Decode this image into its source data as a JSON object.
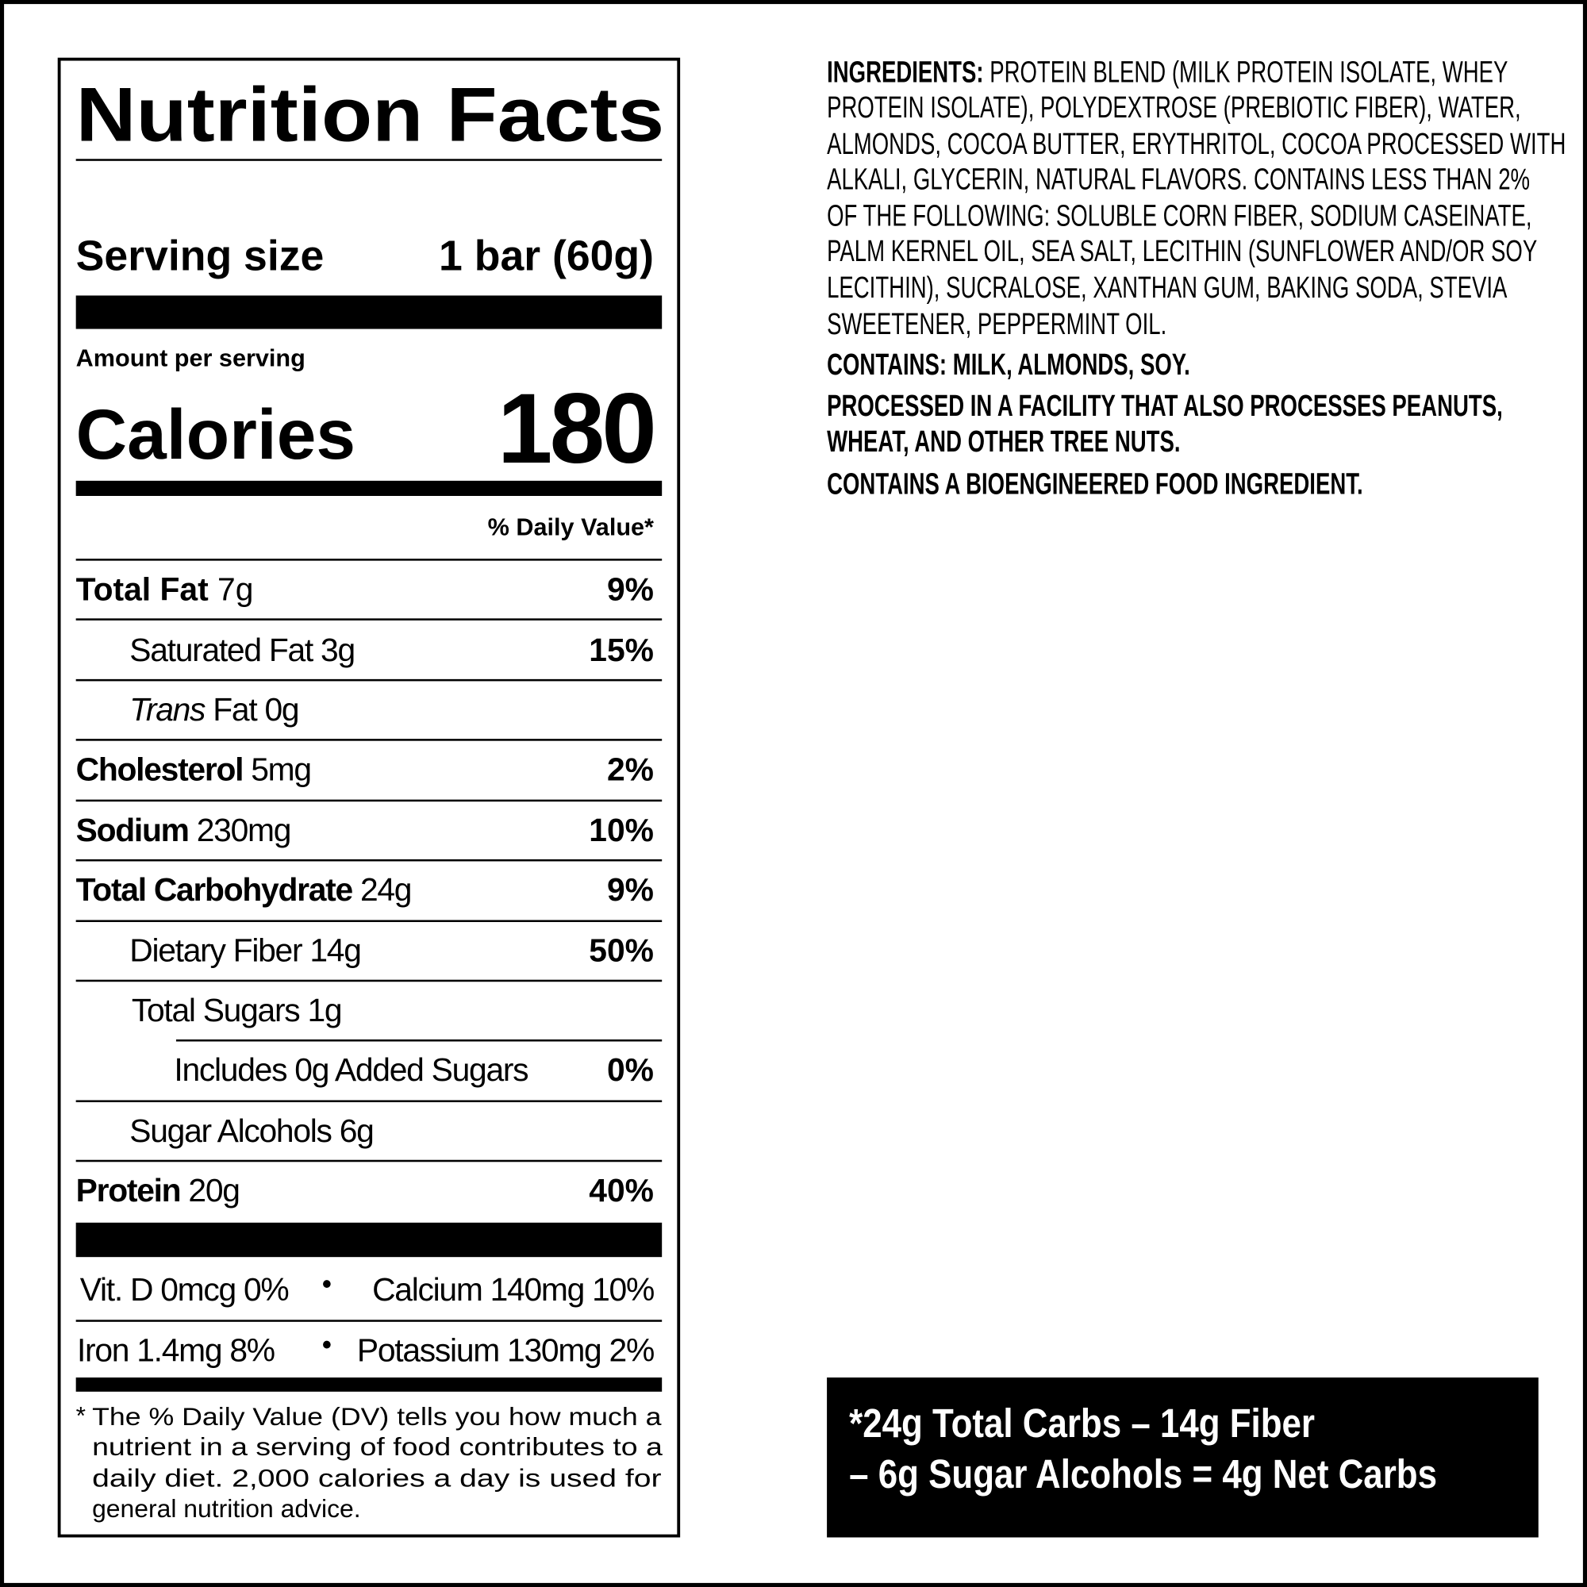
{
  "label": {
    "title": "Nutrition Facts",
    "serving_size_label": "Serving size",
    "serving_size_value": "1 bar (60g)",
    "amount_per_serving": "Amount per serving",
    "calories_label": "Calories",
    "calories_value": "180",
    "daily_value_header": "% Daily Value*",
    "nutrients": [
      {
        "name": "Total Fat",
        "amount": "7g",
        "dv": "9%"
      },
      {
        "name": "Saturated Fat 3g",
        "dv": "15%"
      },
      {
        "name_italic": "Trans",
        "name": "Fat 0g"
      },
      {
        "name": "Cholesterol",
        "amount": "5mg",
        "dv": "2%"
      },
      {
        "name": "Sodium",
        "amount": "230mg",
        "dv": "10%"
      },
      {
        "name": "Total Carbohydrate",
        "amount": "24g",
        "dv": "9%"
      },
      {
        "name": "Dietary Fiber 14g",
        "dv": "50%"
      },
      {
        "name": "Total Sugars 1g"
      },
      {
        "name": "Includes 0g Added Sugars",
        "dv": "0%"
      },
      {
        "name": "Sugar Alcohols 6g"
      },
      {
        "name": "Protein",
        "amount": "20g",
        "dv": "40%"
      }
    ],
    "vitamins": [
      {
        "left": "Vit. D 0mcg 0%",
        "right": "Calcium 140mg 10%"
      },
      {
        "left": "Iron 1.4mg 8%",
        "right": "Potassium 130mg 2%"
      }
    ],
    "bullet": "•",
    "footnote_star": "*",
    "footnote_lines": [
      "The % Daily Value (DV) tells you how much a",
      "nutrient in a serving of food contributes to a",
      "daily diet. 2,000 calories a day is used for",
      "general nutrition advice."
    ]
  },
  "ingredients": {
    "label": "INGREDIENTS:",
    "lines": [
      "PROTEIN BLEND (MILK PROTEIN ISOLATE, WHEY",
      "PROTEIN ISOLATE), POLYDEXTROSE (PREBIOTIC FIBER), WATER,",
      "ALMONDS, COCOA BUTTER, ERYTHRITOL, COCOA PROCESSED WITH",
      "ALKALI, GLYCERIN, NATURAL FLAVORS. CONTAINS LESS THAN 2%",
      "OF THE FOLLOWING: SOLUBLE CORN FIBER, SODIUM CASEINATE,",
      "PALM KERNEL OIL, SEA SALT, LECITHIN (SUNFLOWER AND/OR SOY",
      "LECITHIN), SUCRALOSE, XANTHAN GUM, BAKING SODA, STEVIA",
      "SWEETENER, PEPPERMINT OIL."
    ],
    "contains": "CONTAINS: MILK, ALMONDS, SOY.",
    "facility": [
      "PROCESSED IN A FACILITY THAT ALSO PROCESSES PEANUTS,",
      "WHEAT, AND OTHER TREE NUTS."
    ],
    "bioengineered": "CONTAINS A BIOENGINEERED FOOD INGREDIENT."
  },
  "net_carbs": {
    "line1": "*24g Total Carbs – 14g Fiber",
    "line2": "– 6g Sugar Alcohols = 4g Net Carbs"
  }
}
